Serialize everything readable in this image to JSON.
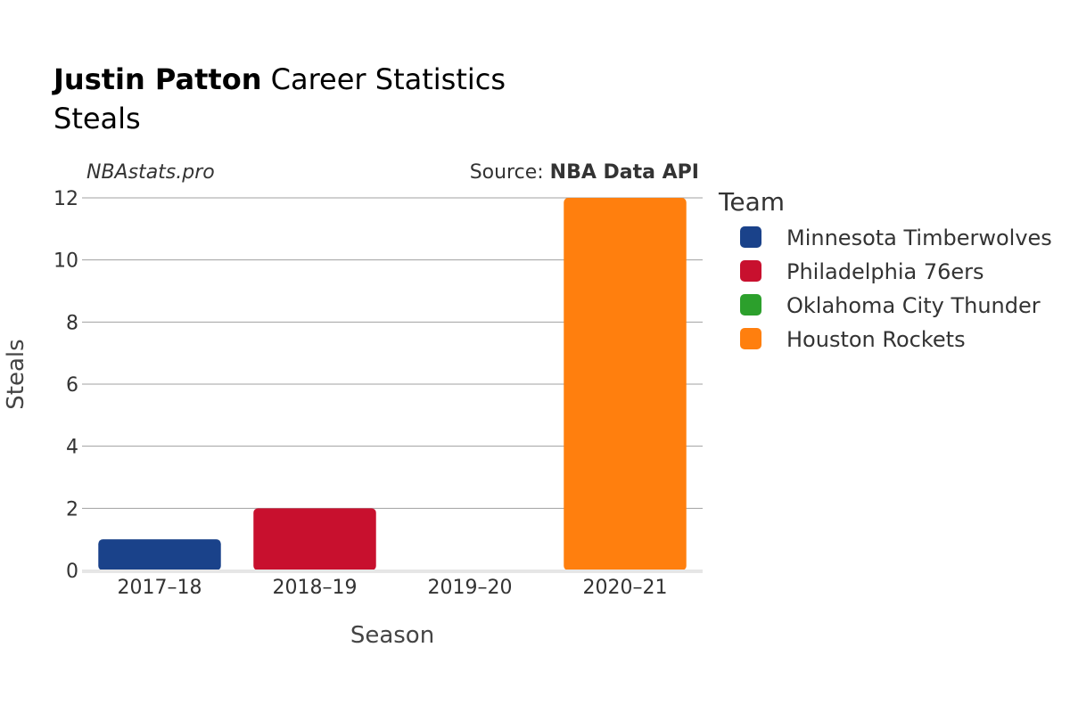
{
  "header": {
    "title_bold": "Justin Patton",
    "title_rest": " Career Statistics",
    "subtitle": "Steals"
  },
  "branding": {
    "site": "NBAstats.pro",
    "source_prefix": "Source: ",
    "source_name": "NBA Data API"
  },
  "chart_data": {
    "type": "bar",
    "categories": [
      "2017–18",
      "2018–19",
      "2019–20",
      "2020–21"
    ],
    "values": [
      1,
      2,
      0,
      12
    ],
    "bar_teams": [
      "Minnesota Timberwolves",
      "Philadelphia 76ers",
      "Oklahoma City Thunder",
      "Houston Rockets"
    ],
    "xlabel": "Season",
    "ylabel": "Steals",
    "ylim": [
      0,
      12
    ],
    "yticks": [
      0,
      2,
      4,
      6,
      8,
      10,
      12
    ],
    "grid": true,
    "legend": {
      "title": "Team",
      "placement": "right",
      "entries": [
        {
          "name": "Minnesota Timberwolves",
          "color": "#1a428a"
        },
        {
          "name": "Philadelphia 76ers",
          "color": "#c8102e"
        },
        {
          "name": "Oklahoma City Thunder",
          "color": "#2ca02c"
        },
        {
          "name": "Houston Rockets",
          "color": "#ff7f0e"
        }
      ]
    }
  }
}
